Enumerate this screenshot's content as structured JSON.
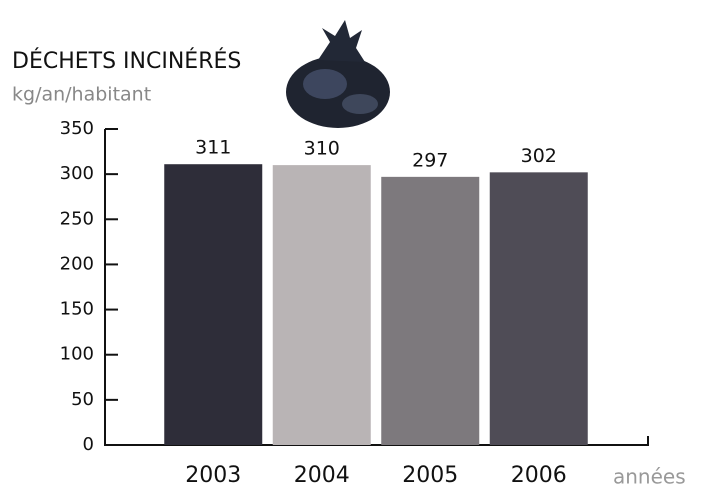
{
  "chart_data": {
    "type": "bar",
    "title": "DÉCHETS INCINÉRÉS",
    "subtitle": "kg/an/habitant",
    "x_label": "années",
    "categories": [
      "2003",
      "2004",
      "2005",
      "2006"
    ],
    "values": [
      311,
      310,
      297,
      302
    ],
    "colors": [
      "#2e2d39",
      "#b9b4b5",
      "#7d797d",
      "#4f4c56"
    ],
    "ylim": [
      0,
      350
    ],
    "yticks": [
      0,
      50,
      100,
      150,
      200,
      250,
      300,
      350
    ],
    "grid": false
  }
}
